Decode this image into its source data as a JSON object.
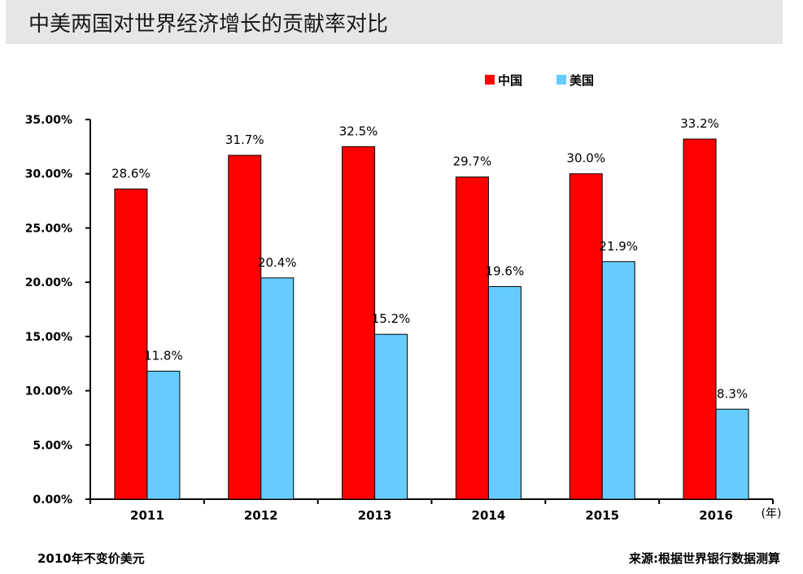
{
  "chart_data": {
    "type": "bar",
    "title": "中美两国对世界经济增长的贡献率对比",
    "categories": [
      "2011",
      "2012",
      "2013",
      "2014",
      "2015",
      "2016"
    ],
    "series": [
      {
        "name": "中国",
        "color": "#ff0000",
        "values": [
          28.6,
          31.7,
          32.5,
          29.7,
          30.0,
          33.2
        ],
        "labels": [
          "28.6%",
          "31.7%",
          "32.5%",
          "29.7%",
          "30.0%",
          "33.2%"
        ]
      },
      {
        "name": "美国",
        "color": "#66ccff",
        "values": [
          11.8,
          20.4,
          15.2,
          19.6,
          21.9,
          8.3
        ],
        "labels": [
          "11.8%",
          "20.4%",
          "15.2%",
          "19.6%",
          "21.9%",
          "8.3%"
        ]
      }
    ],
    "ylim": [
      0,
      35
    ],
    "yticks": [
      0,
      5,
      10,
      15,
      20,
      25,
      30,
      35
    ],
    "ytick_labels": [
      "0.00%",
      "5.00%",
      "10.00%",
      "15.00%",
      "20.00%",
      "25.00%",
      "30.00%",
      "35.00%"
    ],
    "xlabel": "(年)",
    "ylabel": "",
    "legend_position": "top-right",
    "grid": false
  },
  "footer": {
    "note": "2010年不变价美元",
    "source": "来源:根据世界银行数据测算"
  }
}
